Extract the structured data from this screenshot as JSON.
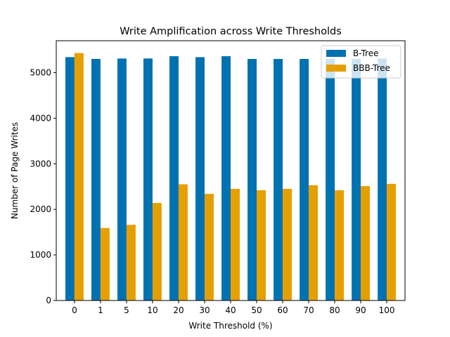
{
  "chart_data": {
    "type": "bar",
    "title": "Write Amplification across Write Thresholds",
    "xlabel": "Write Threshold (%)",
    "ylabel": "Number of Page Writes",
    "categories": [
      "0",
      "1",
      "5",
      "10",
      "20",
      "30",
      "40",
      "50",
      "60",
      "70",
      "80",
      "90",
      "100"
    ],
    "ylim": [
      0,
      5700
    ],
    "yticks": [
      0,
      1000,
      2000,
      3000,
      4000,
      5000
    ],
    "grid": false,
    "legend_position": "top-right",
    "series": [
      {
        "name": "B-Tree",
        "color": "#0072b2",
        "values": [
          5340,
          5300,
          5310,
          5310,
          5360,
          5340,
          5360,
          5300,
          5300,
          5300,
          5300,
          5300,
          5310
        ]
      },
      {
        "name": "BBB-Tree",
        "color": "#e69f00",
        "values": [
          5430,
          1590,
          1660,
          2140,
          2550,
          2340,
          2450,
          2420,
          2450,
          2530,
          2420,
          2510,
          2560
        ]
      }
    ]
  }
}
